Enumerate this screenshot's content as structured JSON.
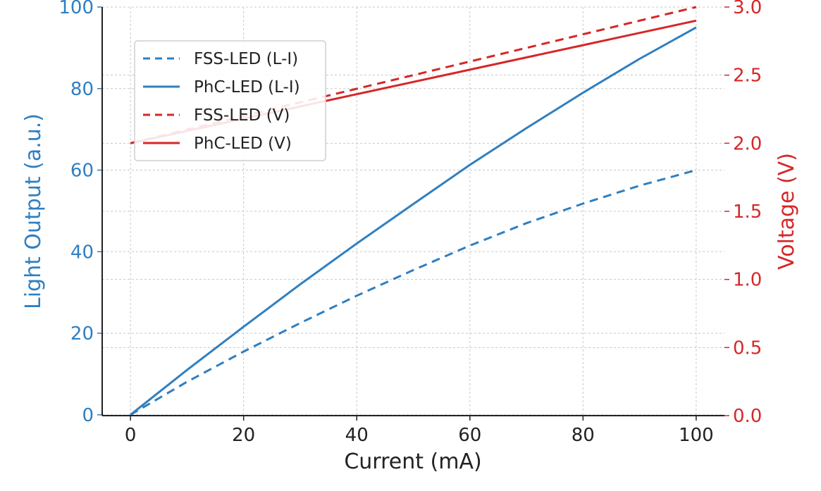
{
  "chart_data": {
    "type": "line",
    "title": "",
    "xlabel": "Current (mA)",
    "ylabel_left": "Light Output (a.u.)",
    "ylabel_right": "Voltage (V)",
    "xlim": [
      -5,
      105
    ],
    "ylim_left": [
      -0.2,
      100
    ],
    "ylim_right": [
      0,
      3.0
    ],
    "x_ticks": [
      0,
      20,
      40,
      60,
      80,
      100
    ],
    "x_tick_labels": [
      "0",
      "20",
      "40",
      "60",
      "80",
      "100"
    ],
    "y_left_ticks": [
      0,
      20,
      40,
      60,
      80,
      100
    ],
    "y_left_tick_labels": [
      "0",
      "20",
      "40",
      "60",
      "80",
      "100"
    ],
    "y_right_ticks": [
      0,
      0.5,
      1.0,
      1.5,
      2.0,
      2.5,
      3.0
    ],
    "y_right_tick_labels": [
      "0.0",
      "0.5",
      "1.0",
      "1.5",
      "2.0",
      "2.5",
      "3.0"
    ],
    "grid": true,
    "legend_position": "upper-left",
    "x": [
      0,
      10,
      20,
      30,
      40,
      50,
      60,
      70,
      80,
      90,
      100
    ],
    "series": [
      {
        "name": "FSS-LED (L-I)",
        "axis": "left",
        "style": "dashed",
        "color": "#2f7fc1",
        "values": [
          0,
          8.1,
          15.5,
          22.5,
          29.2,
          35.5,
          41.5,
          47.0,
          51.8,
          56.2,
          60.0
        ]
      },
      {
        "name": "PhC-LED (L-I)",
        "axis": "left",
        "style": "solid",
        "color": "#2f7fc1",
        "values": [
          0,
          11.0,
          21.6,
          32.0,
          42.0,
          51.7,
          61.3,
          70.3,
          79.0,
          87.3,
          95.0
        ]
      },
      {
        "name": "FSS-LED (V)",
        "axis": "right",
        "style": "dashed",
        "color": "#d62728",
        "values": [
          2.0,
          2.1,
          2.2,
          2.3,
          2.4,
          2.5,
          2.6,
          2.7,
          2.8,
          2.9,
          3.0
        ]
      },
      {
        "name": "PhC-LED (V)",
        "axis": "right",
        "style": "solid",
        "color": "#d62728",
        "values": [
          2.0,
          2.09,
          2.18,
          2.27,
          2.36,
          2.45,
          2.54,
          2.63,
          2.72,
          2.81,
          2.9
        ]
      }
    ]
  }
}
